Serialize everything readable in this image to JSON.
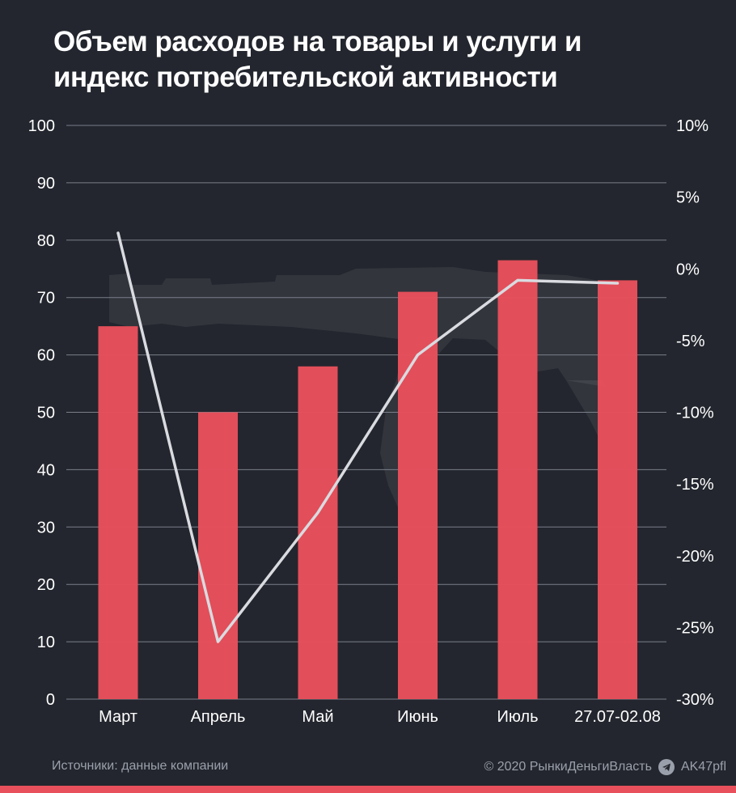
{
  "title_line1": "Объем расходов на товары и услуги и",
  "title_line2": "индекс потребительской активности",
  "footer": {
    "source": "Источники: данные компании",
    "copyright": "© 2020 РынкиДеньгиВласть",
    "handle": "AK47pfl",
    "handle_icon": "telegram-icon"
  },
  "colors": {
    "background": "#23262e",
    "bar": "#e8505b",
    "line": "#d9dbe0",
    "grid": "#7a7f89",
    "text": "#ffffff"
  },
  "chart_data": {
    "type": "bar",
    "categories": [
      "Март",
      "Апрель",
      "Май",
      "Июнь",
      "Июль",
      "27.07-02.08"
    ],
    "series": [
      {
        "type": "bar",
        "axis": "left",
        "values": [
          65,
          50,
          58,
          71,
          76.5,
          73
        ]
      },
      {
        "type": "line",
        "axis": "right",
        "values": [
          2.5,
          -26,
          -17,
          -6,
          -0.8,
          -1
        ]
      }
    ],
    "y_left": {
      "ticks": [
        "0",
        "10",
        "20",
        "30",
        "40",
        "50",
        "60",
        "70",
        "80",
        "90",
        "100"
      ],
      "range": [
        0,
        100
      ]
    },
    "y_right": {
      "ticks": [
        "-30%",
        "-25%",
        "-20%",
        "-15%",
        "-10%",
        "-5%",
        "0%",
        "5%",
        "10%"
      ],
      "range": [
        -30,
        10
      ]
    },
    "grid": true
  }
}
